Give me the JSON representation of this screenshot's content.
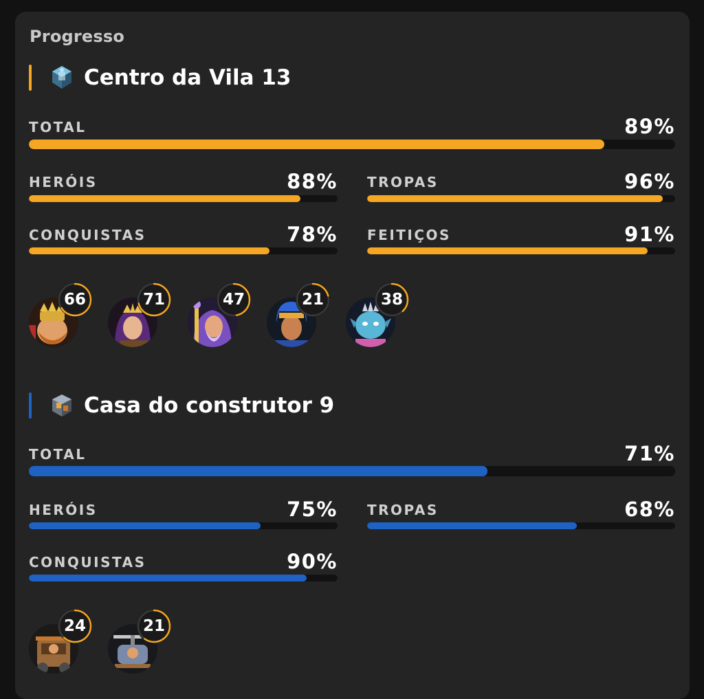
{
  "panel": {
    "title": "Progresso"
  },
  "sections": [
    {
      "title": "Centro da Vila 13",
      "icon": "town-hall-icon",
      "accent": "#f5a623",
      "stats": {
        "total": {
          "label": "TOTAL",
          "value": "89%",
          "fill": 0.89
        },
        "herois": {
          "label": "HERÓIS",
          "value": "88%",
          "fill": 0.88
        },
        "tropas": {
          "label": "TROPAS",
          "value": "96%",
          "fill": 0.96
        },
        "conquistas": {
          "label": "CONQUISTAS",
          "value": "78%",
          "fill": 0.78
        },
        "feiticos": {
          "label": "FEITIÇOS",
          "value": "91%",
          "fill": 0.91
        }
      },
      "heroes": [
        {
          "name": "barbarian-king-avatar",
          "level": "66",
          "ring": 0.66
        },
        {
          "name": "archer-queen-avatar",
          "level": "71",
          "ring": 0.71
        },
        {
          "name": "grand-warden-avatar",
          "level": "47",
          "ring": 0.47
        },
        {
          "name": "royal-champion-avatar",
          "level": "21",
          "ring": 0.21
        },
        {
          "name": "minion-prince-avatar",
          "level": "38",
          "ring": 0.38
        }
      ]
    },
    {
      "title": "Casa do construtor 9",
      "icon": "builder-hall-icon",
      "accent": "#1e63c4",
      "stats": {
        "total": {
          "label": "TOTAL",
          "value": "71%",
          "fill": 0.71
        },
        "herois": {
          "label": "HERÓIS",
          "value": "75%",
          "fill": 0.75
        },
        "tropas": {
          "label": "TROPAS",
          "value": "68%",
          "fill": 0.68
        },
        "conquistas": {
          "label": "CONQUISTAS",
          "value": "90%",
          "fill": 0.9
        }
      },
      "heroes": [
        {
          "name": "battle-machine-avatar",
          "level": "24",
          "ring": 0.62
        },
        {
          "name": "battle-copter-avatar",
          "level": "21",
          "ring": 0.6
        }
      ]
    }
  ]
}
